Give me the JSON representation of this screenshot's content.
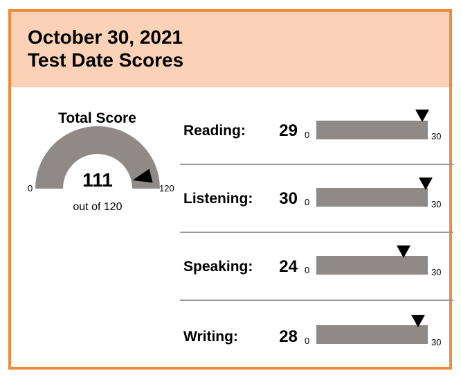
{
  "header": {
    "date": "October 30, 2021",
    "title": "Test Date Scores"
  },
  "total": {
    "title": "Total Score",
    "value": "111",
    "min": "0",
    "max": "120",
    "out_of": "out of 120",
    "score": 111,
    "max_score": 120
  },
  "sections": [
    {
      "label": "Reading:",
      "value": "29",
      "min": "0",
      "max": "30",
      "score": 29,
      "max_score": 30
    },
    {
      "label": "Listening:",
      "value": "30",
      "min": "0",
      "max": "30",
      "score": 30,
      "max_score": 30
    },
    {
      "label": "Speaking:",
      "value": "24",
      "min": "0",
      "max": "30",
      "score": 24,
      "max_score": 30
    },
    {
      "label": "Writing:",
      "value": "28",
      "min": "0",
      "max": "30",
      "score": 28,
      "max_score": 30
    }
  ],
  "colors": {
    "border": "#f28a3c",
    "header_bg": "#fbd2b8",
    "bar": "#8f8987",
    "marker": "#000000"
  }
}
